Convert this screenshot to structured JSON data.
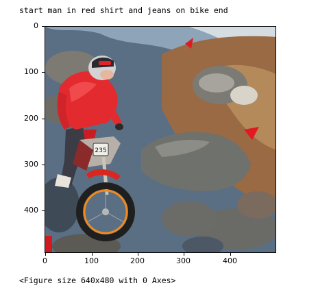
{
  "caption": "start man in red shirt and jeans on bike end",
  "footer": "<Figure size 640x480 with 0 Axes>",
  "plot": {
    "x_ticks": [
      "0",
      "100",
      "200",
      "300",
      "400"
    ],
    "y_ticks": [
      "0",
      "100",
      "200",
      "300",
      "400"
    ],
    "x_range": [
      0,
      500
    ],
    "y_range": [
      0,
      492
    ]
  },
  "scene": {
    "bike_number_plate": "235",
    "accent_red": "#e01a20",
    "shirt_red": "#e32a2f",
    "water_blue": "#5d7f9c",
    "grass_brown": "#9a6a45"
  }
}
